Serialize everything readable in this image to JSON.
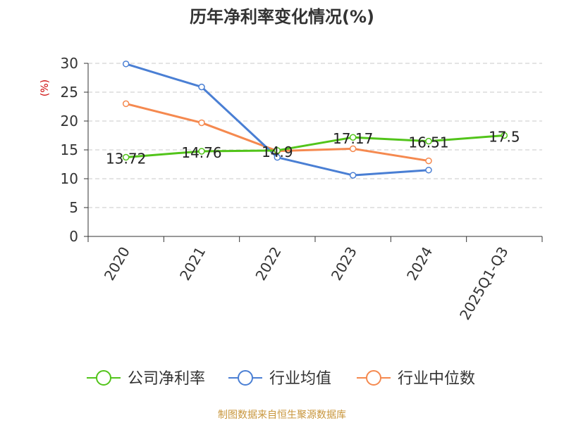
{
  "chart_data": {
    "type": "line",
    "title": "历年净利率变化情况(%)",
    "ylabel": "(%)",
    "xlabel": "",
    "categories": [
      "2020",
      "2021",
      "2022",
      "2023",
      "2024",
      "2025Q1-Q3"
    ],
    "ylim": [
      0,
      30
    ],
    "yticks": [
      0,
      5,
      10,
      15,
      20,
      25,
      30
    ],
    "grid": true,
    "legend_position": "bottom",
    "series": [
      {
        "name": "公司净利率",
        "color": "#52c41a",
        "values": [
          13.72,
          14.76,
          14.9,
          17.17,
          16.51,
          17.5
        ],
        "labels": [
          "13.72",
          "14.76",
          "14.9",
          "17.17",
          "16.51",
          "17.5"
        ]
      },
      {
        "name": "行业均值",
        "color": "#4a7fd4",
        "values": [
          29.9,
          25.9,
          13.7,
          10.6,
          11.5,
          null
        ]
      },
      {
        "name": "行业中位数",
        "color": "#f5894f",
        "values": [
          23.0,
          19.7,
          14.8,
          15.2,
          13.1,
          null
        ]
      }
    ]
  },
  "footer": {
    "source": "制图数据来自恒生聚源数据库"
  }
}
